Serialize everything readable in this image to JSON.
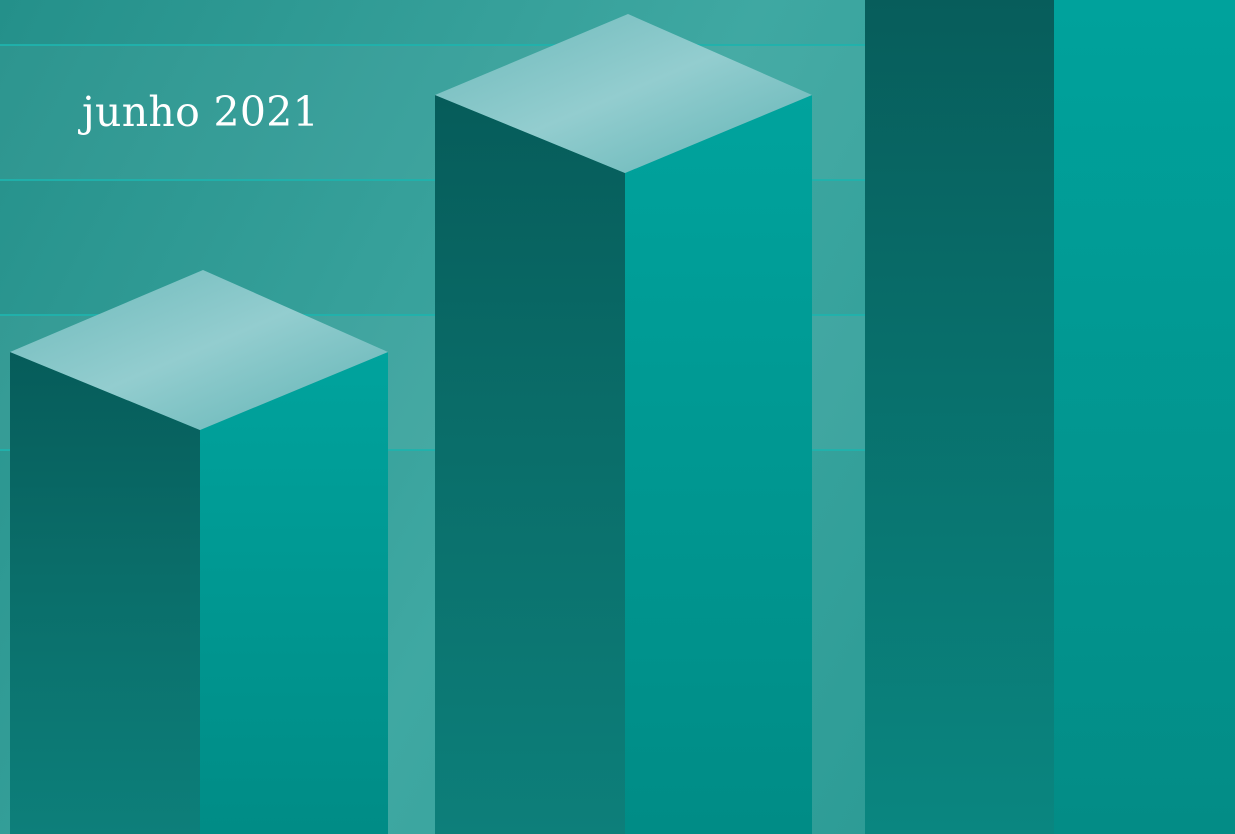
{
  "cover": {
    "date_label": "junho 2021"
  },
  "colors": {
    "background": "#2a9a94",
    "bar_left_face": "#065e5c",
    "bar_right_face": "#00a19b",
    "bar_top_face": "#8cc9cb",
    "grid_line": "#1fb3ad",
    "text": "#ffffff"
  }
}
